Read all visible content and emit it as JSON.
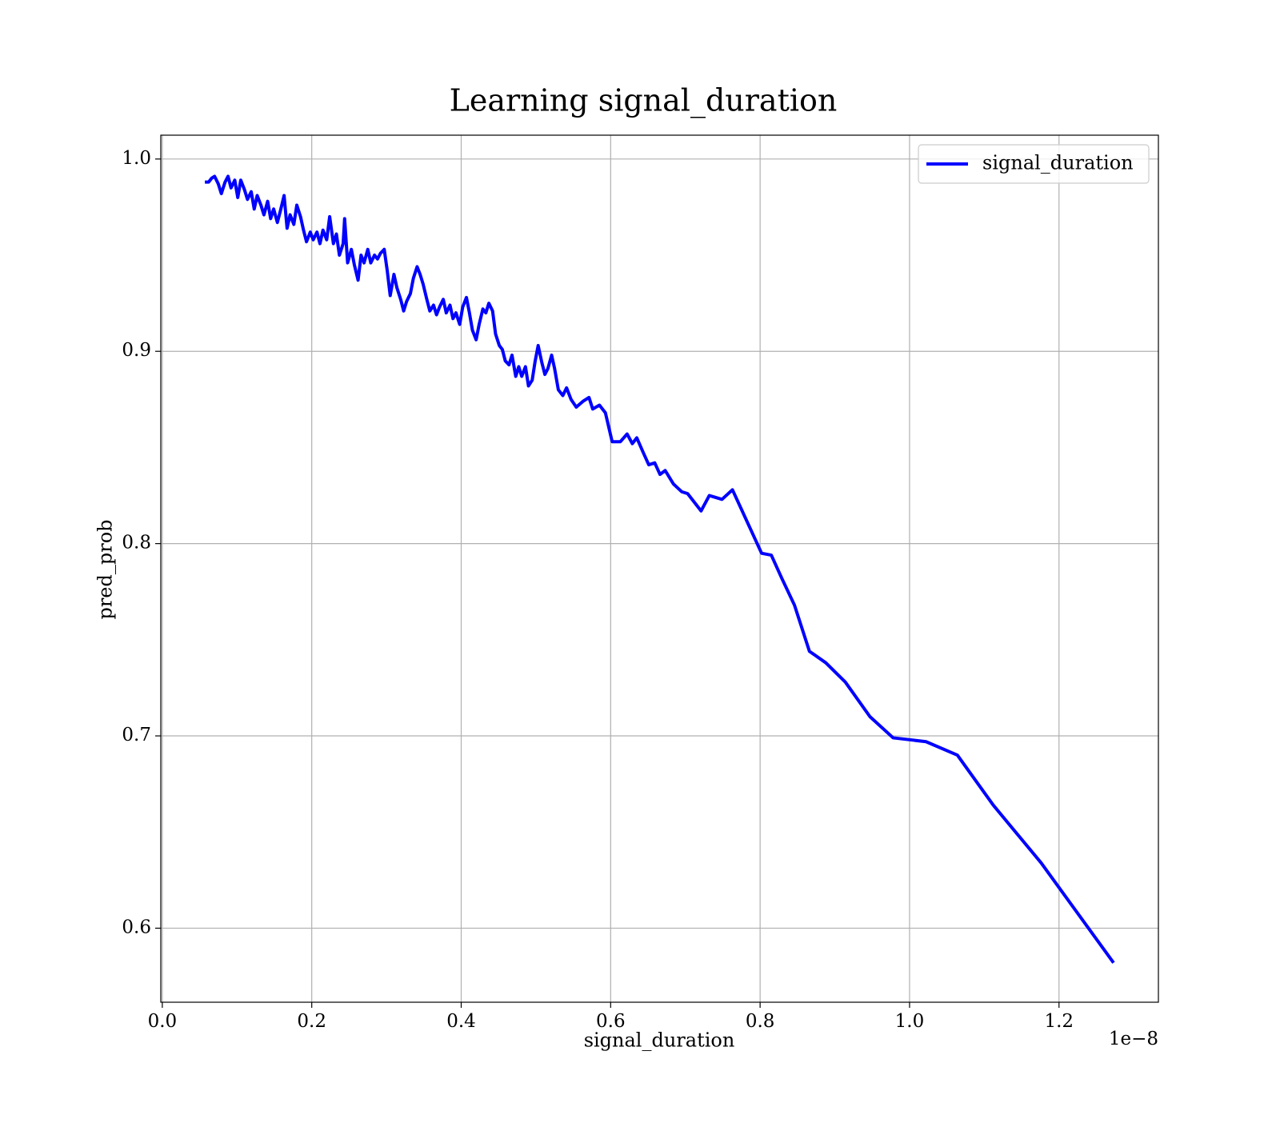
{
  "chart_data": {
    "type": "line",
    "title": "Learning signal_duration",
    "x_label": "signal_duration",
    "y_label": "pred_prob",
    "x_offset_label": "1e−8",
    "xlim": [
      -0.002,
      1.333
    ],
    "ylim": [
      0.5615,
      1.0124
    ],
    "xticks": [
      {
        "value": 0,
        "label": "0.0"
      },
      0.2,
      0.4,
      0.6,
      0.8,
      {
        "value": 1,
        "label": "1.0"
      },
      1.2
    ],
    "yticks": [
      0.6,
      0.7,
      0.8,
      0.9,
      {
        "value": 1,
        "label": "1.0"
      }
    ],
    "grid": true,
    "legend": "upper right",
    "x": [
      0.057,
      0.062,
      0.066,
      0.07,
      0.075,
      0.079,
      0.084,
      0.088,
      0.092,
      0.097,
      0.101,
      0.105,
      0.11,
      0.114,
      0.119,
      0.123,
      0.127,
      0.132,
      0.136,
      0.141,
      0.145,
      0.149,
      0.154,
      0.158,
      0.163,
      0.167,
      0.171,
      0.176,
      0.18,
      0.185,
      0.189,
      0.193,
      0.198,
      0.202,
      0.207,
      0.211,
      0.215,
      0.22,
      0.224,
      0.229,
      0.233,
      0.237,
      0.242,
      0.244,
      0.248,
      0.253,
      0.257,
      0.262,
      0.266,
      0.27,
      0.275,
      0.279,
      0.284,
      0.288,
      0.292,
      0.297,
      0.301,
      0.305,
      0.31,
      0.314,
      0.319,
      0.323,
      0.327,
      0.332,
      0.336,
      0.341,
      0.345,
      0.349,
      0.354,
      0.358,
      0.363,
      0.367,
      0.371,
      0.376,
      0.38,
      0.385,
      0.389,
      0.393,
      0.398,
      0.402,
      0.407,
      0.411,
      0.415,
      0.42,
      0.424,
      0.429,
      0.433,
      0.437,
      0.442,
      0.446,
      0.451,
      0.455,
      0.459,
      0.464,
      0.468,
      0.473,
      0.477,
      0.481,
      0.486,
      0.49,
      0.495,
      0.499,
      0.503,
      0.508,
      0.512,
      0.516,
      0.521,
      0.525,
      0.53,
      0.536,
      0.541,
      0.547,
      0.554,
      0.563,
      0.571,
      0.576,
      0.585,
      0.593,
      0.602,
      0.613,
      0.622,
      0.629,
      0.635,
      0.644,
      0.651,
      0.659,
      0.666,
      0.673,
      0.684,
      0.695,
      0.703,
      0.721,
      0.732,
      0.749,
      0.763,
      0.802,
      0.815,
      0.829,
      0.846,
      0.866,
      0.888,
      0.914,
      0.947,
      0.978,
      1.022,
      1.064,
      1.112,
      1.176,
      1.273
    ],
    "series": [
      {
        "name": "signal_duration",
        "color": "#0000ff",
        "values": [
          0.988,
          0.988,
          0.99,
          0.991,
          0.987,
          0.982,
          0.988,
          0.991,
          0.985,
          0.989,
          0.98,
          0.989,
          0.984,
          0.979,
          0.983,
          0.974,
          0.981,
          0.976,
          0.971,
          0.978,
          0.969,
          0.974,
          0.967,
          0.973,
          0.981,
          0.964,
          0.971,
          0.966,
          0.976,
          0.97,
          0.963,
          0.957,
          0.962,
          0.958,
          0.962,
          0.956,
          0.963,
          0.958,
          0.97,
          0.956,
          0.961,
          0.95,
          0.956,
          0.969,
          0.946,
          0.953,
          0.945,
          0.937,
          0.95,
          0.946,
          0.953,
          0.946,
          0.95,
          0.948,
          0.951,
          0.953,
          0.942,
          0.929,
          0.94,
          0.933,
          0.927,
          0.921,
          0.926,
          0.93,
          0.938,
          0.944,
          0.94,
          0.935,
          0.927,
          0.921,
          0.924,
          0.919,
          0.923,
          0.927,
          0.92,
          0.924,
          0.917,
          0.92,
          0.914,
          0.923,
          0.928,
          0.92,
          0.911,
          0.906,
          0.914,
          0.922,
          0.92,
          0.925,
          0.921,
          0.909,
          0.903,
          0.901,
          0.895,
          0.893,
          0.898,
          0.887,
          0.892,
          0.887,
          0.892,
          0.882,
          0.885,
          0.895,
          0.903,
          0.894,
          0.888,
          0.891,
          0.898,
          0.891,
          0.88,
          0.877,
          0.881,
          0.875,
          0.871,
          0.874,
          0.876,
          0.87,
          0.872,
          0.868,
          0.853,
          0.853,
          0.857,
          0.852,
          0.855,
          0.847,
          0.841,
          0.842,
          0.836,
          0.838,
          0.831,
          0.827,
          0.826,
          0.817,
          0.825,
          0.823,
          0.828,
          0.795,
          0.794,
          0.782,
          0.768,
          0.744,
          0.738,
          0.728,
          0.71,
          0.699,
          0.697,
          0.69,
          0.664,
          0.634,
          0.582
        ]
      }
    ]
  }
}
